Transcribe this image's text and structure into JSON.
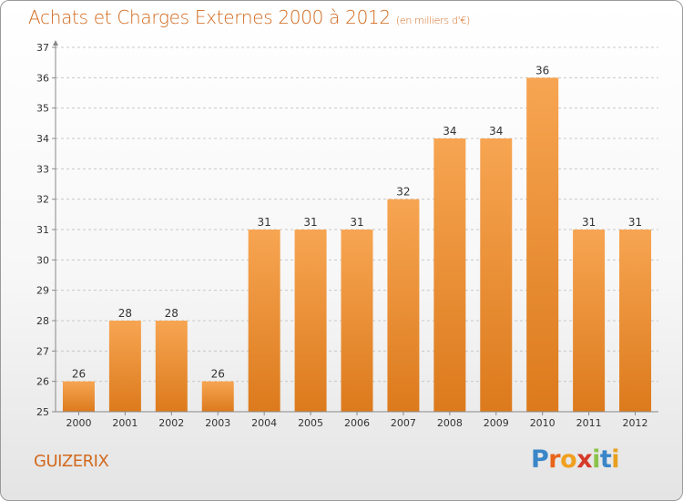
{
  "title": "Achats et Charges Externes 2000 à 2012",
  "subtitle": "(en milliers d'€)",
  "place": "GUIZERIX",
  "logo": {
    "letters": [
      {
        "ch": "P",
        "color": "#3a86c8"
      },
      {
        "ch": "r",
        "color": "#e8651a"
      },
      {
        "ch": "o",
        "color": "#f0a020"
      },
      {
        "ch": "x",
        "color": "#d63a2a"
      },
      {
        "ch": "i",
        "color": "#8bc34a"
      },
      {
        "ch": "t",
        "color": "#3a86c8"
      },
      {
        "ch": "i",
        "color": "#e8a020"
      }
    ]
  },
  "colors": {
    "bar_top": "#f7a552",
    "bar_bottom": "#dc7a1c",
    "accent_text": "#d2691e"
  },
  "chart_data": {
    "type": "bar",
    "categories": [
      "2000",
      "2001",
      "2002",
      "2003",
      "2004",
      "2005",
      "2006",
      "2007",
      "2008",
      "2009",
      "2010",
      "2011",
      "2012"
    ],
    "values": [
      26,
      28,
      28,
      26,
      31,
      31,
      31,
      32,
      34,
      34,
      36,
      31,
      31
    ],
    "ylim": [
      25,
      37
    ],
    "yticks": [
      25,
      26,
      27,
      28,
      29,
      30,
      31,
      32,
      33,
      34,
      35,
      36,
      37
    ],
    "grid": "horizontal dashed",
    "data_labels": true
  }
}
